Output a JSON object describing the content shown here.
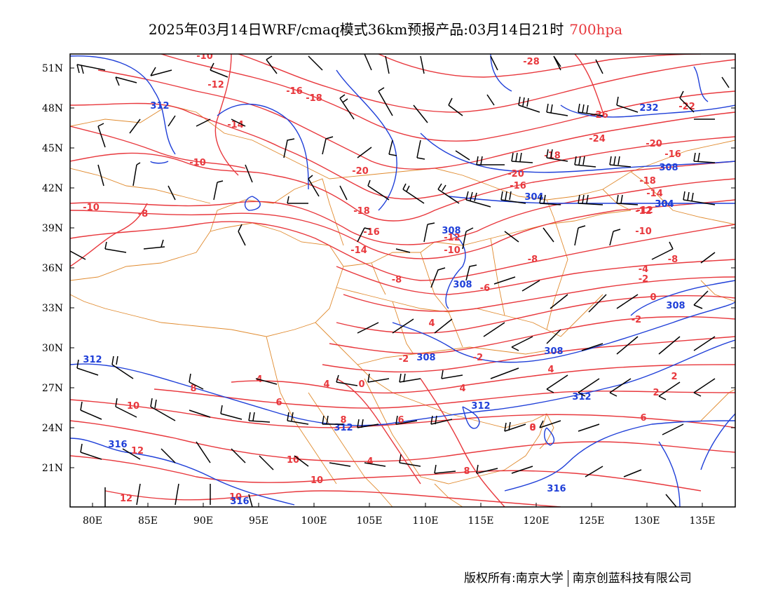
{
  "title": {
    "main": "2025年03月14日WRF/cmaq模式36km预报产品:03月14日21时",
    "level": "700hpa"
  },
  "axes": {
    "lat_ticks": [
      "51N",
      "48N",
      "45N",
      "42N",
      "39N",
      "36N",
      "33N",
      "30N",
      "27N",
      "24N",
      "21N"
    ],
    "lon_ticks": [
      "80E",
      "85E",
      "90E",
      "95E",
      "100E",
      "105E",
      "110E",
      "115E",
      "120E",
      "125E",
      "130E",
      "135E"
    ]
  },
  "colors": {
    "temperature": "#e8383d",
    "geopotential": "#1f3fd8",
    "borders": "#e08a2e",
    "barbs": "#000000"
  },
  "legend_layers": [
    "temperature-contour",
    "geopotential-height-contour",
    "wind-barb",
    "province-border"
  ],
  "contour_labels": {
    "temperature": [
      "-10",
      "-12",
      "-16",
      "-18",
      "-14",
      "-20",
      "-28",
      "-26",
      "-24",
      "-22",
      "-20",
      "-16",
      "-18",
      "-10",
      "-10",
      "-8",
      "-18",
      "-16",
      "-14",
      "-12",
      "-10",
      "-12",
      "-8",
      "-6",
      "-8",
      "-4",
      "-2",
      "0",
      "-2",
      "-2",
      "2",
      "4",
      "4",
      "-2",
      "4",
      "0",
      "4",
      "4",
      "6",
      "8",
      "6",
      "6",
      "8",
      "8",
      "10",
      "12",
      "12",
      "10",
      "10",
      "10",
      "8",
      "-16",
      "-14",
      "-12",
      "-10",
      "-8",
      "2",
      "4",
      "0",
      "-20",
      "-18"
    ],
    "height": [
      "312",
      "312",
      "304",
      "304",
      "308",
      "308",
      "308",
      "308",
      "308",
      "312",
      "312",
      "312",
      "316",
      "316",
      "316",
      "232",
      "308",
      "304"
    ]
  },
  "copyright": {
    "owner": "版权所有:南京大学",
    "company": "南京创蓝科技有限公司"
  }
}
